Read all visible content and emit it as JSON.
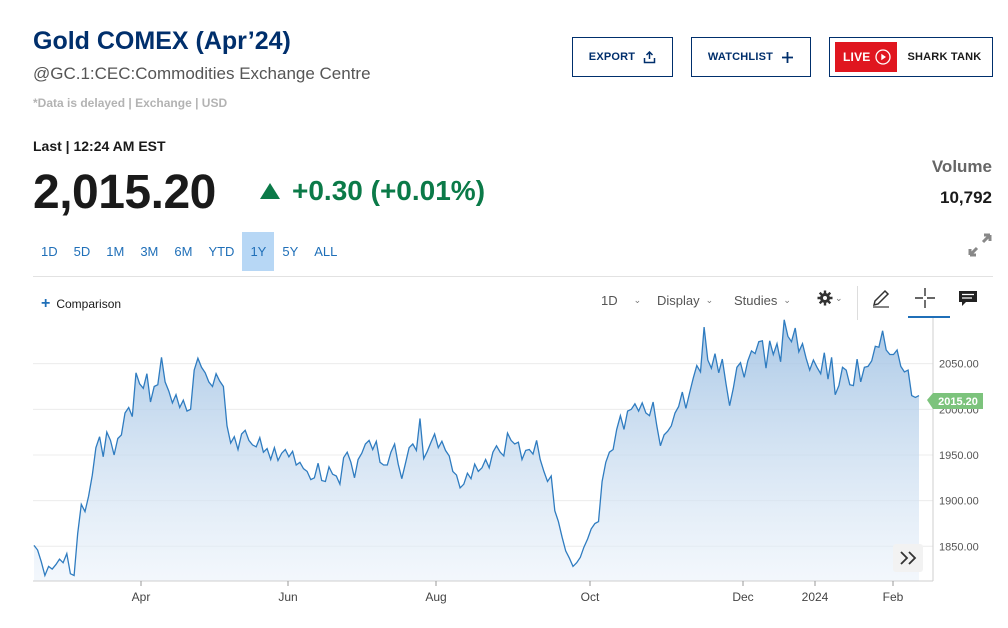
{
  "header": {
    "title": "Gold COMEX (Apr’24)",
    "subtitle": "@GC.1:CEC:Commodities Exchange Centre",
    "delay_note": "*Data is delayed | Exchange | USD"
  },
  "toolbar": {
    "export_label": "EXPORT",
    "watchlist_label": "WATCHLIST",
    "live_label": "LIVE",
    "show_label": "SHARK TANK"
  },
  "quote": {
    "last_label": "Last | 12:24 AM EST",
    "price": "2,015.20",
    "change": "+0.30 (+0.01%)",
    "volume_label": "Volume",
    "volume": "10,792"
  },
  "range_tabs": [
    "1D",
    "5D",
    "1M",
    "3M",
    "6M",
    "YTD",
    "1Y",
    "5Y",
    "ALL"
  ],
  "active_range": "1Y",
  "chart_controls": {
    "comparison": "Comparison",
    "interval": "1D",
    "display": "Display",
    "studies": "Studies"
  },
  "colors": {
    "brand_navy": "#002f6c",
    "up_green": "#0b7a48",
    "live_red": "#e0161f",
    "link_blue": "#1f6fb8",
    "line_blue": "#2f7cc0",
    "price_tag_green": "#7cc37c"
  },
  "icons": [
    "share-icon",
    "plus-icon",
    "play-icon",
    "up-triangle-icon",
    "expand-icon",
    "gear-icon",
    "pencil-icon",
    "crosshair-icon",
    "comment-icon",
    "double-chevron-icon"
  ],
  "chart_data": {
    "type": "area",
    "x_tick_labels": [
      "Apr",
      "Jun",
      "Aug",
      "Oct",
      "Dec",
      "2024",
      "Feb"
    ],
    "y_tick_labels": [
      "1850.00",
      "1900.00",
      "1950.00",
      "2000.00",
      "2050.00"
    ],
    "ylim": [
      1812,
      2100
    ],
    "last_price_tag": "2015.20",
    "series": [
      {
        "values": [
          1851,
          1846,
          1833,
          1818,
          1828,
          1825,
          1830,
          1836,
          1832,
          1842,
          1820,
          1818,
          1864,
          1896,
          1888,
          1905,
          1928,
          1958,
          1970,
          1948,
          1975,
          1966,
          1950,
          1968,
          1972,
          1996,
          2002,
          1992,
          2040,
          2028,
          2023,
          2039,
          2008,
          2025,
          2027,
          2057,
          2030,
          2020,
          2007,
          2016,
          2002,
          2010,
          1998,
          2000,
          2043,
          2056,
          2046,
          2040,
          2030,
          2025,
          2039,
          2031,
          2025,
          1982,
          1963,
          1970,
          1956,
          1973,
          1977,
          1966,
          1961,
          1959,
          1969,
          1953,
          1957,
          1945,
          1958,
          1944,
          1952,
          1956,
          1948,
          1954,
          1939,
          1942,
          1935,
          1932,
          1923,
          1925,
          1941,
          1922,
          1921,
          1937,
          1929,
          1927,
          1918,
          1947,
          1953,
          1942,
          1925,
          1945,
          1952,
          1962,
          1966,
          1956,
          1965,
          1942,
          1939,
          1939,
          1953,
          1962,
          1940,
          1924,
          1941,
          1958,
          1962,
          1955,
          1990,
          1946,
          1954,
          1964,
          1973,
          1958,
          1965,
          1955,
          1949,
          1932,
          1928,
          1914,
          1918,
          1930,
          1924,
          1940,
          1932,
          1936,
          1945,
          1936,
          1953,
          1960,
          1953,
          1949,
          1974,
          1966,
          1962,
          1964,
          1945,
          1955,
          1956,
          1951,
          1966,
          1945,
          1932,
          1921,
          1927,
          1889,
          1877,
          1860,
          1845,
          1837,
          1828,
          1832,
          1838,
          1849,
          1858,
          1869,
          1875,
          1877,
          1921,
          1942,
          1953,
          1956,
          1978,
          1993,
          1978,
          1998,
          2000,
          2006,
          1998,
          2007,
          1996,
          1993,
          2008,
          1982,
          1960,
          1972,
          1976,
          1982,
          1996,
          2003,
          2019,
          2001,
          2018,
          2034,
          2048,
          2041,
          2090,
          2054,
          2045,
          2061,
          2040,
          2055,
          2028,
          2004,
          2023,
          2046,
          2051,
          2035,
          2053,
          2064,
          2061,
          2074,
          2075,
          2045,
          2075,
          2060,
          2072,
          2052,
          2098,
          2080,
          2074,
          2089,
          2063,
          2072,
          2056,
          2043,
          2054,
          2046,
          2039,
          2062,
          2033,
          2057,
          2016,
          2026,
          2046,
          2043,
          2027,
          2026,
          2055,
          2030,
          2046,
          2047,
          2053,
          2069,
          2068,
          2086,
          2065,
          2060,
          2060,
          2065,
          2047,
          2041,
          2043,
          2015,
          2013,
          2015
        ]
      }
    ]
  }
}
